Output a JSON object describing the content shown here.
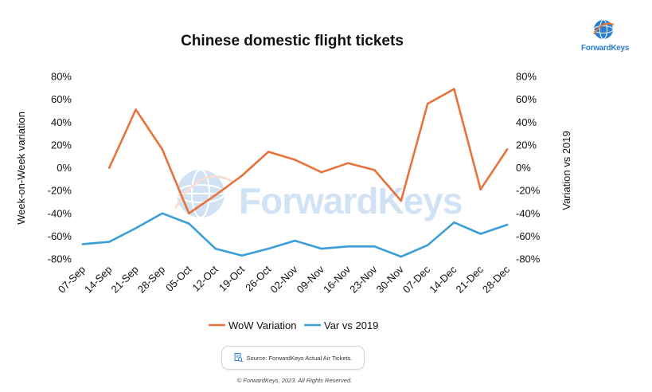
{
  "brand": {
    "logo_text": "ForwardKeys",
    "watermark_text": "ForwardKeys",
    "primary_color": "#2c7fd0",
    "accent_color": "#e8733a"
  },
  "source_note": "Source: ForwardKeys Actual Air Tickets.",
  "copyright": "© ForwardKeys, 2023. All Rights Reserved.",
  "chart_data": {
    "type": "line",
    "title": "Chinese domestic flight tickets",
    "ylabel_left": "Week-on-Week variation",
    "ylabel_right": "Variation vs 2019",
    "categories": [
      "07-Sep",
      "14-Sep",
      "21-Sep",
      "28-Sep",
      "05-Oct",
      "12-Oct",
      "19-Oct",
      "26-Oct",
      "02-Nov",
      "09-Nov",
      "16-Nov",
      "23-Nov",
      "30-Nov",
      "07-Dec",
      "14-Dec",
      "21-Dec",
      "28-Dec"
    ],
    "y_ticks": [
      "80%",
      "60%",
      "40%",
      "20%",
      "0%",
      "-20%",
      "-40%",
      "-60%",
      "-80%"
    ],
    "ylim": [
      -80,
      80
    ],
    "grid": false,
    "legend_position": "bottom",
    "series": [
      {
        "name": "WoW Variation",
        "axis": "left",
        "color": "#e8733a",
        "values": [
          null,
          0,
          51,
          16,
          -40,
          -24,
          -7,
          14,
          7,
          -4,
          4,
          -2,
          -29,
          56,
          69,
          -19,
          16
        ]
      },
      {
        "name": "Var vs 2019",
        "axis": "right",
        "color": "#3a9ed8",
        "values": [
          -67,
          -65,
          -53,
          -40,
          -49,
          -71,
          -77,
          -71,
          -64,
          -71,
          -69,
          -69,
          -78,
          -68,
          -48,
          -58,
          -50
        ]
      }
    ]
  }
}
